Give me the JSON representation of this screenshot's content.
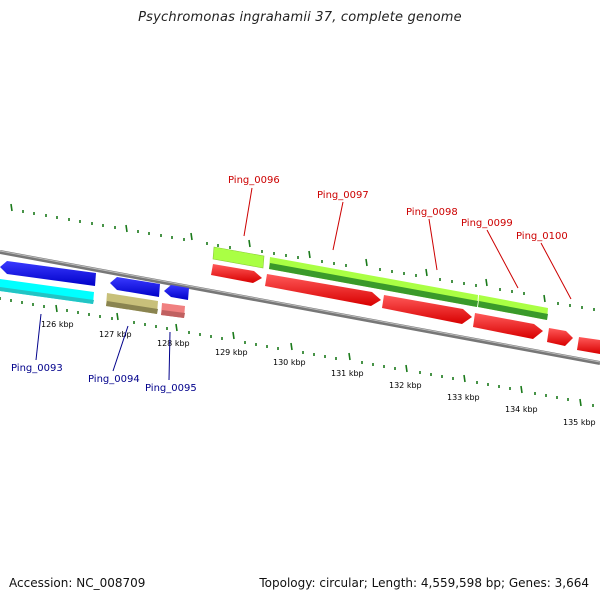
{
  "title": "Psychromonas ingrahamii 37, complete genome",
  "footer": {
    "accession": "Accession: NC_008709",
    "summary": "Topology: circular; Length: 4,559,598 bp; Genes: 3,664"
  },
  "axis_labels": [
    "126 kbp",
    "127 kbp",
    "128 kbp",
    "129 kbp",
    "130 kbp",
    "131 kbp",
    "132 kbp",
    "133 kbp",
    "134 kbp",
    "135 kbp"
  ],
  "genes": [
    {
      "name": "Ping_0093",
      "color": "#00008b"
    },
    {
      "name": "Ping_0094",
      "color": "#00008b"
    },
    {
      "name": "Ping_0095",
      "color": "#00008b"
    },
    {
      "name": "Ping_0096",
      "color": "#cc0000"
    },
    {
      "name": "Ping_0097",
      "color": "#cc0000"
    },
    {
      "name": "Ping_0098",
      "color": "#cc0000"
    },
    {
      "name": "Ping_0099",
      "color": "#cc0000"
    },
    {
      "name": "Ping_0100",
      "color": "#cc0000"
    }
  ],
  "colors": {
    "forward_cds": "#ff0000",
    "reverse_cds": "#0000ff",
    "rna_light": "#aaff44",
    "rna_dark": "#228b22",
    "cyan_feature": "#00ffff",
    "khaki_feature": "#bdb76b",
    "pink_feature": "#f08080",
    "backbone": "#808080",
    "ticks": "#1a7a1a"
  }
}
